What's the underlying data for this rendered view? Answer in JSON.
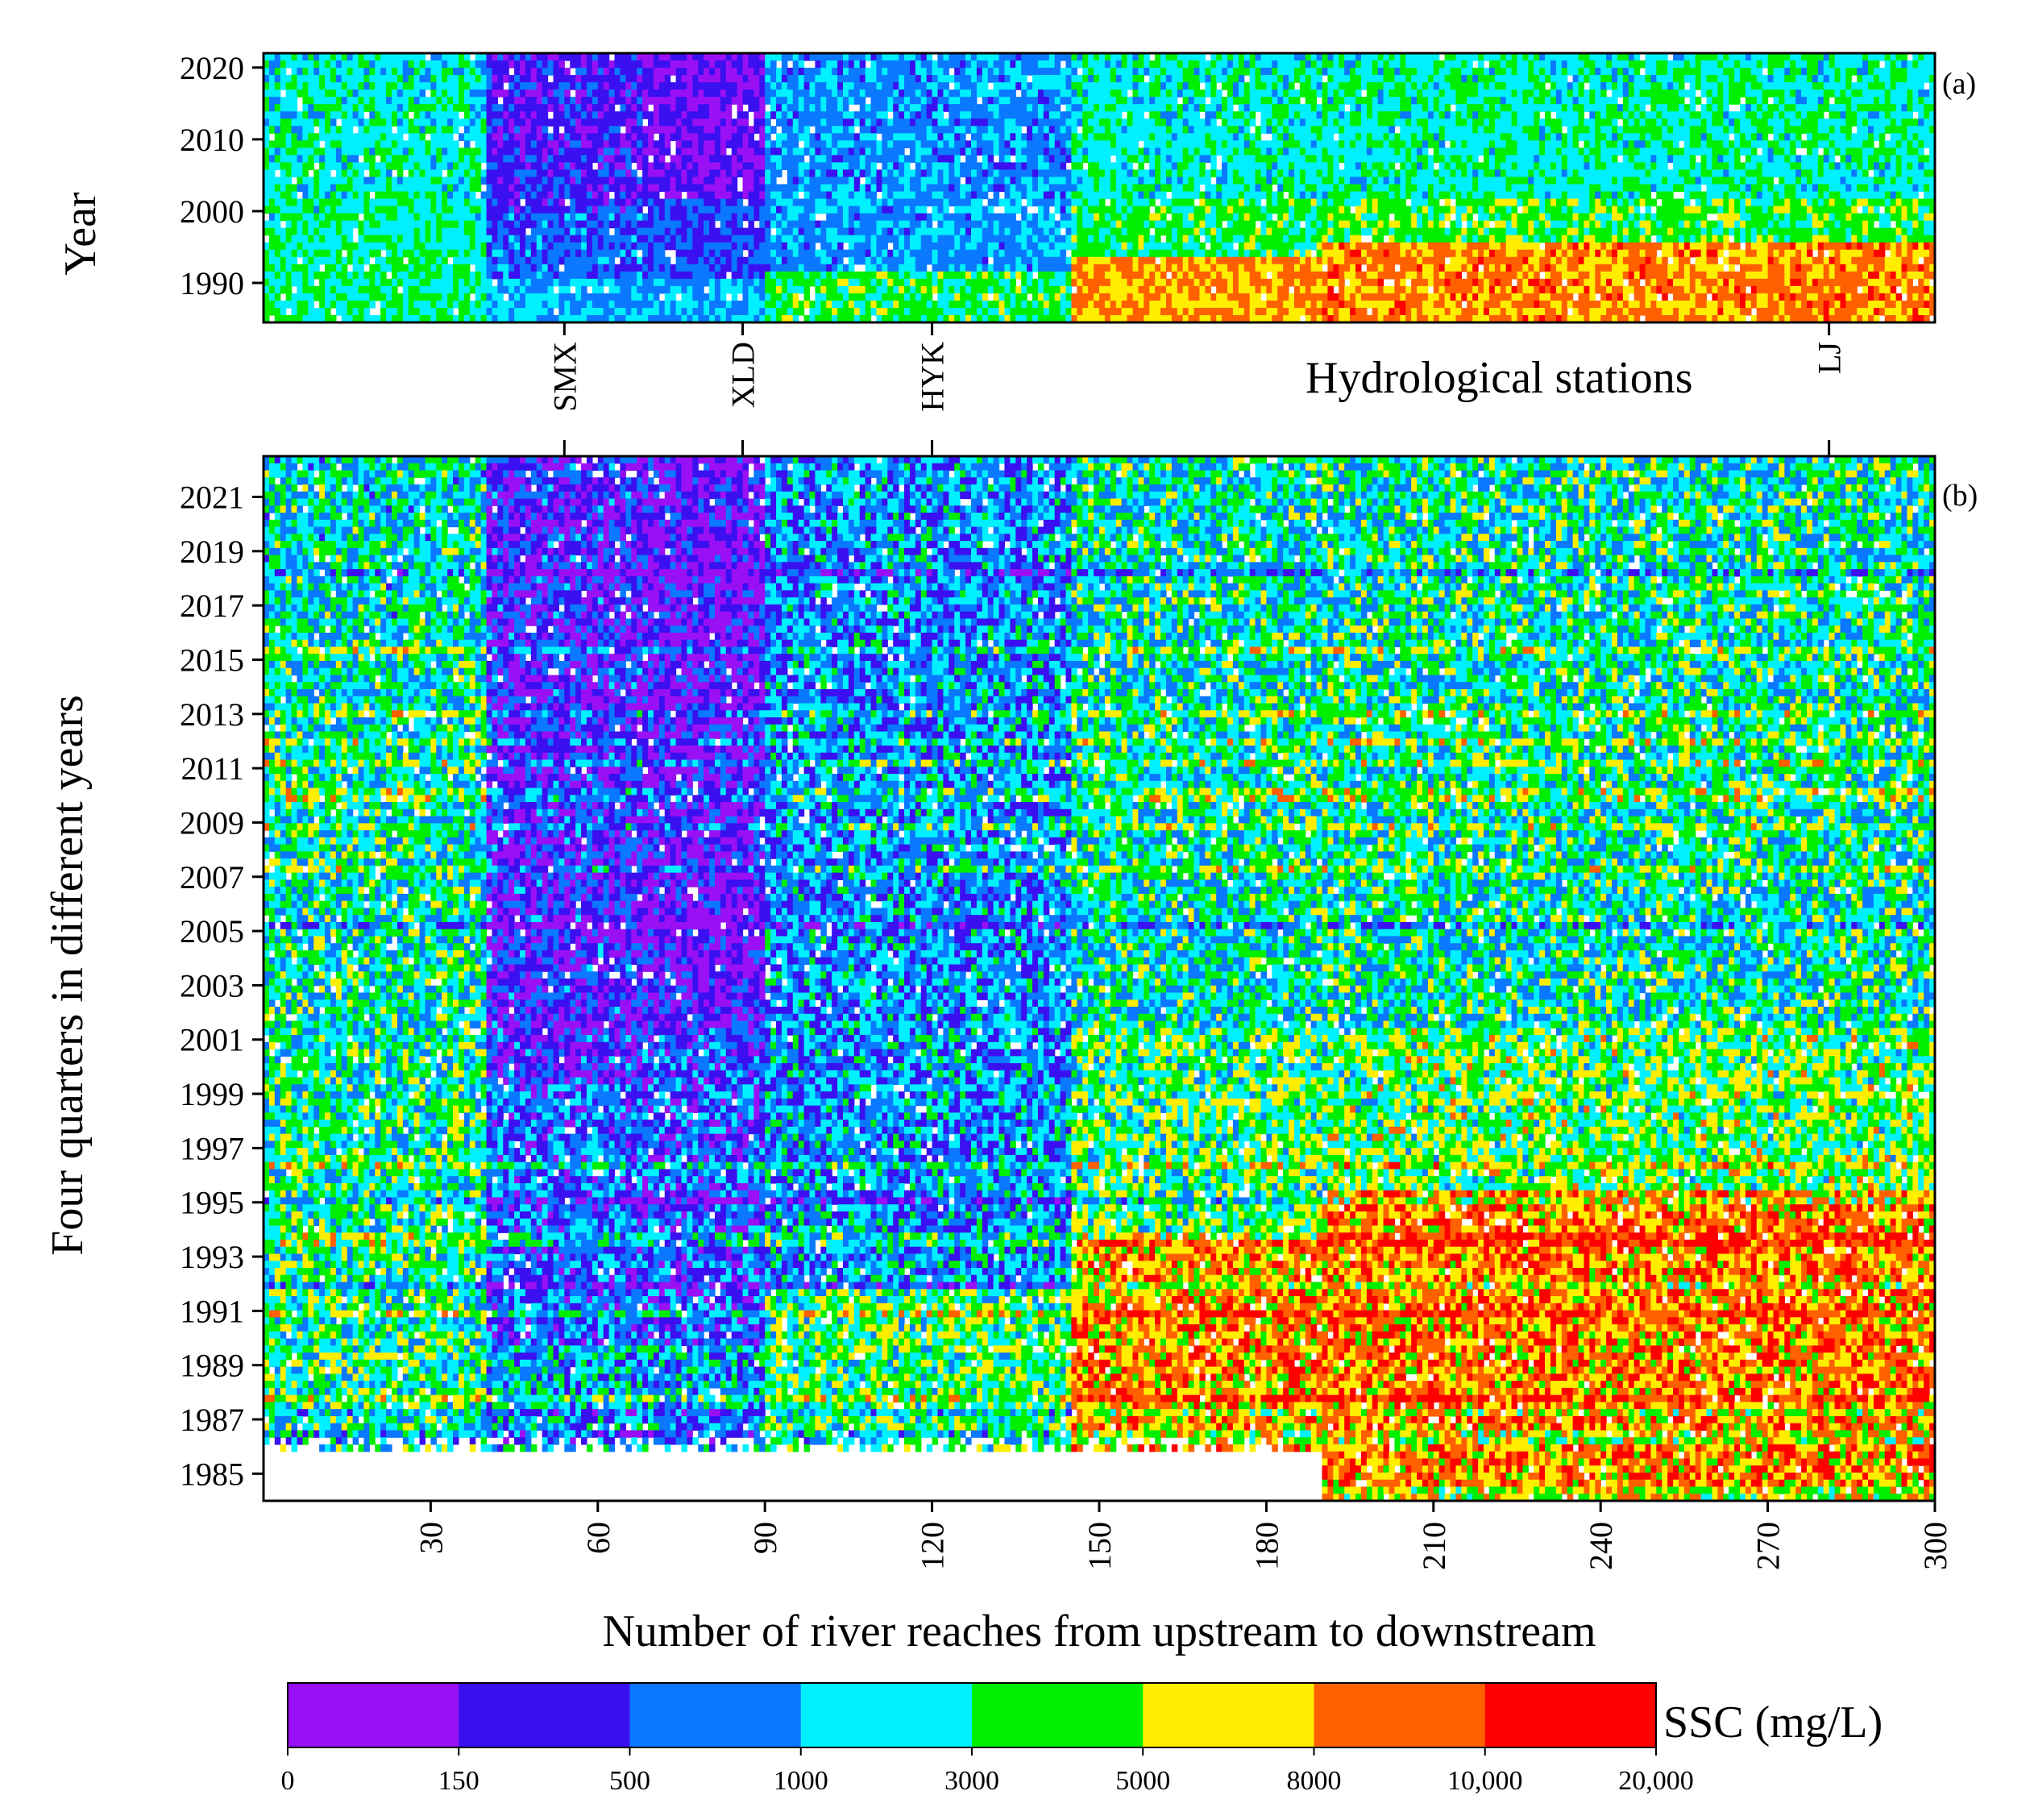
{
  "chart_data": {
    "type": "heatmap",
    "colorbar": {
      "title": "SSC (mg/L)",
      "boundaries": [
        "0",
        "150",
        "500",
        "1000",
        "3000",
        "5000",
        "8000",
        "10,000",
        "20,000"
      ],
      "colors": [
        "#9a10f5",
        "#3a10f0",
        "#0a78ff",
        "#00f0ff",
        "#00ee00",
        "#ffee00",
        "#ff6000",
        "#ff0000"
      ]
    },
    "x_axis": {
      "label": "Number of river reaches from upstream to downstream",
      "range": [
        0,
        300
      ],
      "ticks": [
        30,
        60,
        90,
        120,
        150,
        180,
        210,
        240,
        270,
        300
      ]
    },
    "stations": {
      "title": "Hydrological stations",
      "items": [
        {
          "name": "SMX",
          "reach": 54
        },
        {
          "name": "XLD",
          "reach": 86
        },
        {
          "name": "HYK",
          "reach": 120
        },
        {
          "name": "LJ",
          "reach": 281
        }
      ]
    },
    "panels": [
      {
        "id": "a",
        "label": "(a)",
        "ylabel": "Year",
        "ylim": [
          1984.5,
          2022
        ],
        "yticks": [
          "1990",
          "2000",
          "2010",
          "2020"
        ],
        "rows": 37,
        "description_zones": [
          {
            "reach": [
              0,
              40
            ],
            "dominant": "3000-5000 / 1000-3000"
          },
          {
            "reach": [
              40,
              90
            ],
            "dominant": "150-500 / 500-1000"
          },
          {
            "reach": [
              90,
              145
            ],
            "dominant": "500-1000 / 1000-3000"
          },
          {
            "reach": [
              145,
              300
            ],
            "dominant": "1000-3000 recent, 5000-20,000 before 2000"
          }
        ]
      },
      {
        "id": "b",
        "label": "(b)",
        "ylabel": "Four quarters in different years",
        "ylim": [
          1984,
          2022.5
        ],
        "yticks": [
          "1985",
          "1987",
          "1989",
          "1991",
          "1993",
          "1995",
          "1997",
          "1999",
          "2001",
          "2003",
          "2005",
          "2007",
          "2009",
          "2011",
          "2013",
          "2015",
          "2017",
          "2019",
          "2021"
        ],
        "rows": 148
      }
    ]
  }
}
